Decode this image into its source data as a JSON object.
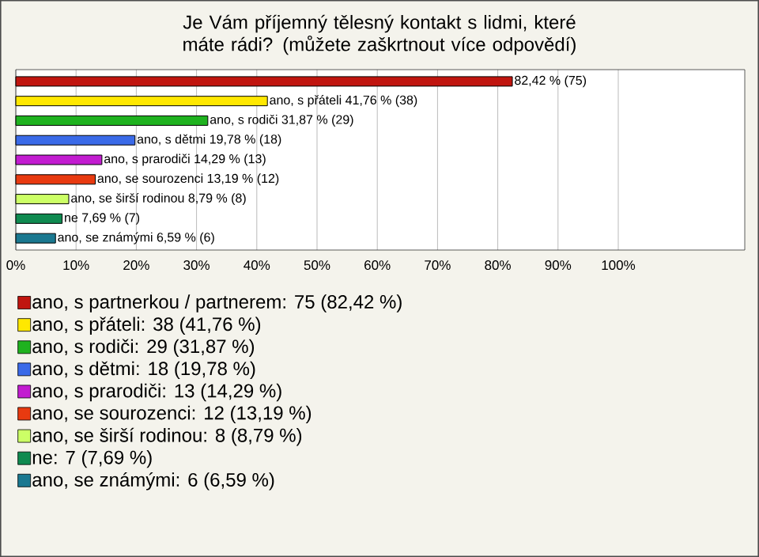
{
  "chart_data": {
    "type": "bar",
    "orientation": "horizontal",
    "title": "Je Vám příjemný tělesný kontakt s lidmi, které máte rádi? (můžete zaškrtnout více odpovědí)",
    "categories": [
      null,
      null,
      null,
      null,
      null,
      null,
      null,
      null,
      null
    ],
    "series": [
      {
        "name": "ano, s partnerkou / partnerem: 75 (82,42 %)",
        "color": "#c0150f",
        "values": [
          82.42,
          null,
          null,
          null,
          null,
          null,
          null,
          null,
          null
        ],
        "value_labels": [
          "82,42 % (75)",
          null,
          null,
          null,
          null,
          null,
          null,
          null,
          null
        ]
      },
      {
        "name": "ano, s přáteli: 38 (41,76 %)",
        "color": "#ffe800",
        "values": [
          null,
          41.76,
          null,
          null,
          null,
          null,
          null,
          null,
          null
        ],
        "value_labels": [
          null,
          "ano, s přáteli 41,76 % (38)",
          null,
          null,
          null,
          null,
          null,
          null,
          null
        ]
      },
      {
        "name": "ano, s rodiči: 29 (31,87 %)",
        "color": "#1fb21f",
        "values": [
          null,
          null,
          31.87,
          null,
          null,
          null,
          null,
          null,
          null
        ],
        "value_labels": [
          null,
          null,
          "ano, s rodiči 31,87 % (29)",
          null,
          null,
          null,
          null,
          null,
          null
        ]
      },
      {
        "name": "ano, s dětmi: 18 (19,78 %)",
        "color": "#3a6ae8",
        "values": [
          null,
          null,
          null,
          19.78,
          null,
          null,
          null,
          null,
          null
        ],
        "value_labels": [
          null,
          null,
          null,
          "ano, s dětmi 19,78 % (18)",
          null,
          null,
          null,
          null,
          null
        ]
      },
      {
        "name": "ano, s prarodiči: 13 (14,29 %)",
        "color": "#c21cd0",
        "values": [
          null,
          null,
          null,
          null,
          14.29,
          null,
          null,
          null,
          null
        ],
        "value_labels": [
          null,
          null,
          null,
          null,
          "ano, s prarodiči 14,29 % (13)",
          null,
          null,
          null,
          null
        ]
      },
      {
        "name": "ano, se sourozenci: 12 (13,19 %)",
        "color": "#e83a10",
        "values": [
          null,
          null,
          null,
          null,
          null,
          13.19,
          null,
          null,
          null
        ],
        "value_labels": [
          null,
          null,
          null,
          null,
          null,
          "ano, se sourozenci 13,19 % (12)",
          null,
          null,
          null
        ]
      },
      {
        "name": "ano, se širší rodinou: 8 (8,79 %)",
        "color": "#ccff66",
        "values": [
          null,
          null,
          null,
          null,
          null,
          null,
          8.79,
          null,
          null
        ],
        "value_labels": [
          null,
          null,
          null,
          null,
          null,
          null,
          "ano, se širší rodinou 8,79 % (8)",
          null,
          null
        ]
      },
      {
        "name": "ne: 7 (7,69 %)",
        "color": "#0f8a50",
        "values": [
          null,
          null,
          null,
          null,
          null,
          null,
          null,
          7.69,
          null
        ],
        "value_labels": [
          null,
          null,
          null,
          null,
          null,
          null,
          null,
          "ne 7,69 % (7)",
          null
        ]
      },
      {
        "name": "ano, se známými: 6 (6,59 %)",
        "color": "#1a7890",
        "values": [
          null,
          null,
          null,
          null,
          null,
          null,
          null,
          null,
          6.59
        ],
        "value_labels": [
          null,
          null,
          null,
          null,
          null,
          null,
          null,
          null,
          "ano, se známými 6,59 % (6)"
        ]
      }
    ],
    "xlim": [
      0,
      121
    ],
    "xticks": [
      {
        "value": 0,
        "label": "0%"
      },
      {
        "value": 10,
        "label": "10%"
      },
      {
        "value": 20,
        "label": "20%"
      },
      {
        "value": 30,
        "label": "30%"
      },
      {
        "value": 40,
        "label": "40%"
      },
      {
        "value": 50,
        "label": "50%"
      },
      {
        "value": 60,
        "label": "60%"
      },
      {
        "value": 70,
        "label": "70%"
      },
      {
        "value": 80,
        "label": "80%"
      },
      {
        "value": 90,
        "label": "90%"
      },
      {
        "value": 100,
        "label": "100%"
      }
    ],
    "grid": "x",
    "legend": "bottom"
  }
}
